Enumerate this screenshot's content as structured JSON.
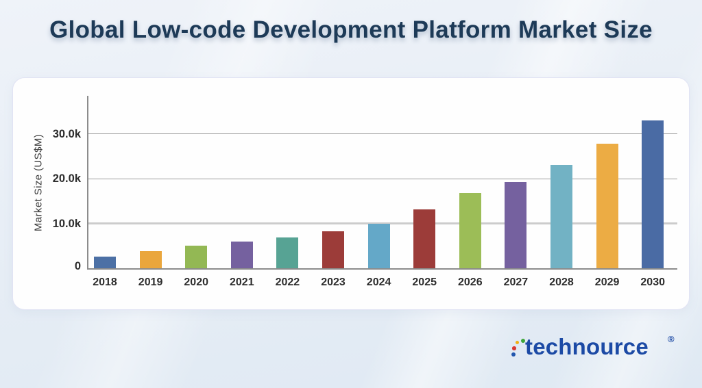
{
  "header": {
    "title": "Global Low-code Development Platform Market Size"
  },
  "branding": {
    "logo_text": "technource",
    "registered_mark": "®",
    "logo_color": "#1c4aa5",
    "dot_colors": {
      "green": "#3da639",
      "yellow": "#f1af14",
      "red": "#d93a35",
      "blue": "#2257ae"
    }
  },
  "chart_data": {
    "type": "bar",
    "title": "Global Low-code Development Platform Market Size",
    "xlabel": "",
    "ylabel": "Market Size (US$M)",
    "unit": "US$M",
    "categories": [
      "2018",
      "2019",
      "2020",
      "2021",
      "2022",
      "2023",
      "2024",
      "2025",
      "2026",
      "2027",
      "2028",
      "2029",
      "2030"
    ],
    "values": [
      2600,
      3800,
      5100,
      6000,
      6900,
      8200,
      10000,
      13100,
      16800,
      19300,
      23000,
      27800,
      33000
    ],
    "bar_colors": [
      "#4C70A5",
      "#EAA63C",
      "#93B854",
      "#75619F",
      "#57A394",
      "#9C3C39",
      "#64A8C8",
      "#9C3C39",
      "#9CBD57",
      "#75619F",
      "#72B2C4",
      "#ECAC44",
      "#4A6BA4"
    ],
    "y_ticks": [
      {
        "label": "0",
        "value": 0
      },
      {
        "label": "10.0k",
        "value": 10000
      },
      {
        "label": "20.0k",
        "value": 20000
      },
      {
        "label": "30.0k",
        "value": 30000
      }
    ],
    "ylim": [
      0,
      38500
    ],
    "grid": "horizontal-only",
    "legend": "none"
  }
}
